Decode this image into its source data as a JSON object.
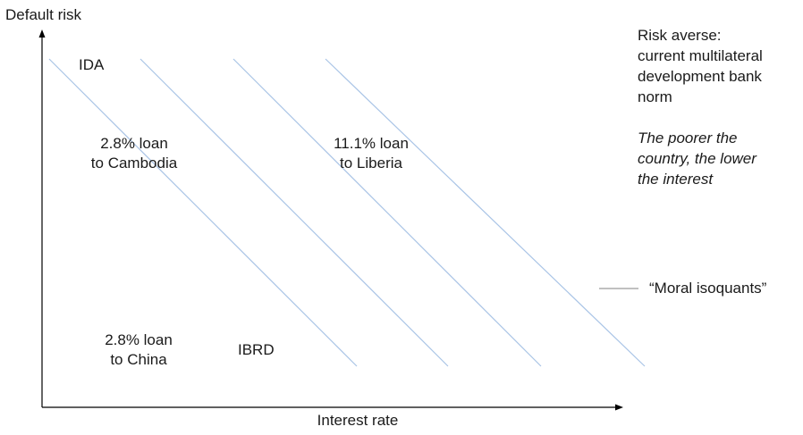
{
  "axes": {
    "y_label": "Default risk",
    "x_label": "Interest rate"
  },
  "labels": {
    "ida": "IDA",
    "ibrd": "IBRD",
    "cambodia": [
      "2.8% loan",
      "to Cambodia"
    ],
    "liberia": [
      "11.1% loan",
      "to Liberia"
    ],
    "china": [
      "2.8% loan",
      "to China"
    ]
  },
  "sidebar": {
    "heading": [
      "Risk averse:",
      "current multilateral",
      "development bank",
      "norm"
    ],
    "note": [
      "The poorer the",
      "country, the lower",
      "the interest"
    ]
  },
  "legend": {
    "label": "“Moral isoquants”"
  },
  "colors": {
    "isoquant": "#a9c4e6",
    "axis": "#000000",
    "legend_line": "#9a9a9a"
  }
}
